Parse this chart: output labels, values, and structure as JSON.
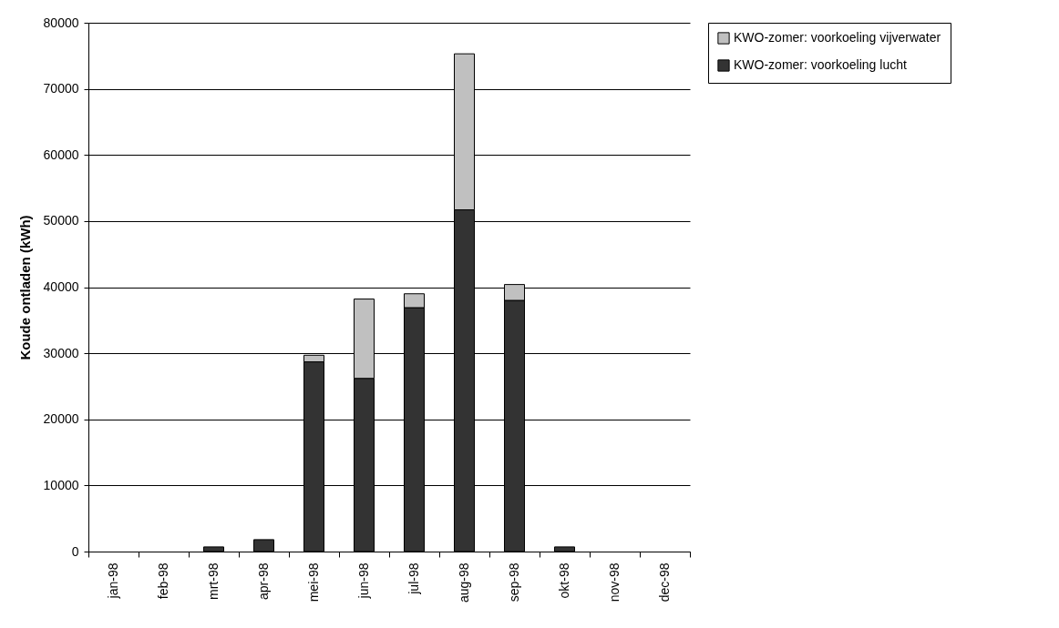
{
  "chart_data": {
    "type": "bar",
    "stacked": true,
    "ylabel": "Koude ontladen (kWh)",
    "categories": [
      "jan-98",
      "feb-98",
      "mrt-98",
      "apr-98",
      "mei-98",
      "jun-98",
      "jul-98",
      "aug-98",
      "sep-98",
      "okt-98",
      "nov-98",
      "dec-98"
    ],
    "series": [
      {
        "name": "KWO-zomer: voorkoeling lucht",
        "color": "#333333",
        "values": [
          0,
          0,
          700,
          1800,
          28700,
          26200,
          36900,
          51700,
          38000,
          700,
          0,
          0
        ]
      },
      {
        "name": "KWO-zomer: voorkoeling vijverwater",
        "color": "#c0c0c0",
        "values": [
          0,
          0,
          0,
          0,
          1000,
          12000,
          2100,
          23600,
          2400,
          0,
          0,
          0
        ]
      }
    ],
    "ylim": [
      0,
      80000
    ],
    "yticks": [
      0,
      10000,
      20000,
      30000,
      40000,
      50000,
      60000,
      70000,
      80000
    ],
    "grid": "y",
    "legend": "right"
  }
}
